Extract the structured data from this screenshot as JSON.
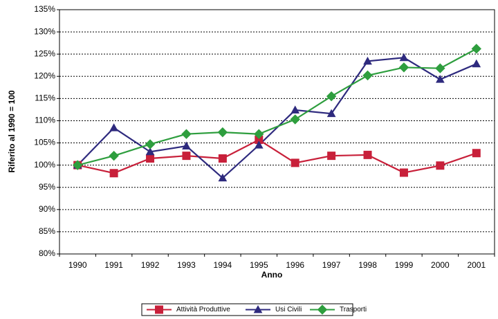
{
  "chart_data": {
    "type": "line",
    "x_label": "Anno",
    "y_label": "Riferito al 1990 = 100",
    "categories": [
      "1990",
      "1991",
      "1992",
      "1993",
      "1994",
      "1995",
      "1996",
      "1997",
      "1998",
      "1999",
      "2000",
      "2001"
    ],
    "series": [
      {
        "name": "Attività Produttive",
        "color": "#c8203a",
        "marker": "square",
        "values": [
          100,
          98.2,
          101.5,
          102.1,
          101.5,
          105.7,
          100.5,
          102.1,
          102.3,
          98.3,
          99.9,
          102.7
        ]
      },
      {
        "name": "Usi Civili",
        "color": "#2e2a7e",
        "marker": "triangle",
        "values": [
          100,
          108.4,
          103,
          104.3,
          97.1,
          104.5,
          112.4,
          111.6,
          123.4,
          124.2,
          119.3,
          122.8
        ]
      },
      {
        "name": "Trasporti",
        "color": "#2e9e3e",
        "marker": "diamond",
        "values": [
          100,
          102.1,
          104.7,
          107,
          107.4,
          107,
          110.3,
          115.5,
          120.2,
          122,
          121.8,
          126.2
        ]
      }
    ],
    "ylim": [
      80,
      135
    ],
    "yticks": [
      {
        "value": 80,
        "label": "80%"
      },
      {
        "value": 85,
        "label": "85%"
      },
      {
        "value": 90,
        "label": "90%"
      },
      {
        "value": 95,
        "label": "95%"
      },
      {
        "value": 100,
        "label": "100%"
      },
      {
        "value": 105,
        "label": "105%"
      },
      {
        "value": 110,
        "label": "110%"
      },
      {
        "value": 115,
        "label": "115%"
      },
      {
        "value": 120,
        "label": "120%"
      },
      {
        "value": 125,
        "label": "125%"
      },
      {
        "value": 130,
        "label": "130%"
      },
      {
        "value": 135,
        "label": "135%"
      }
    ],
    "grid": true,
    "legend": "bottom"
  }
}
